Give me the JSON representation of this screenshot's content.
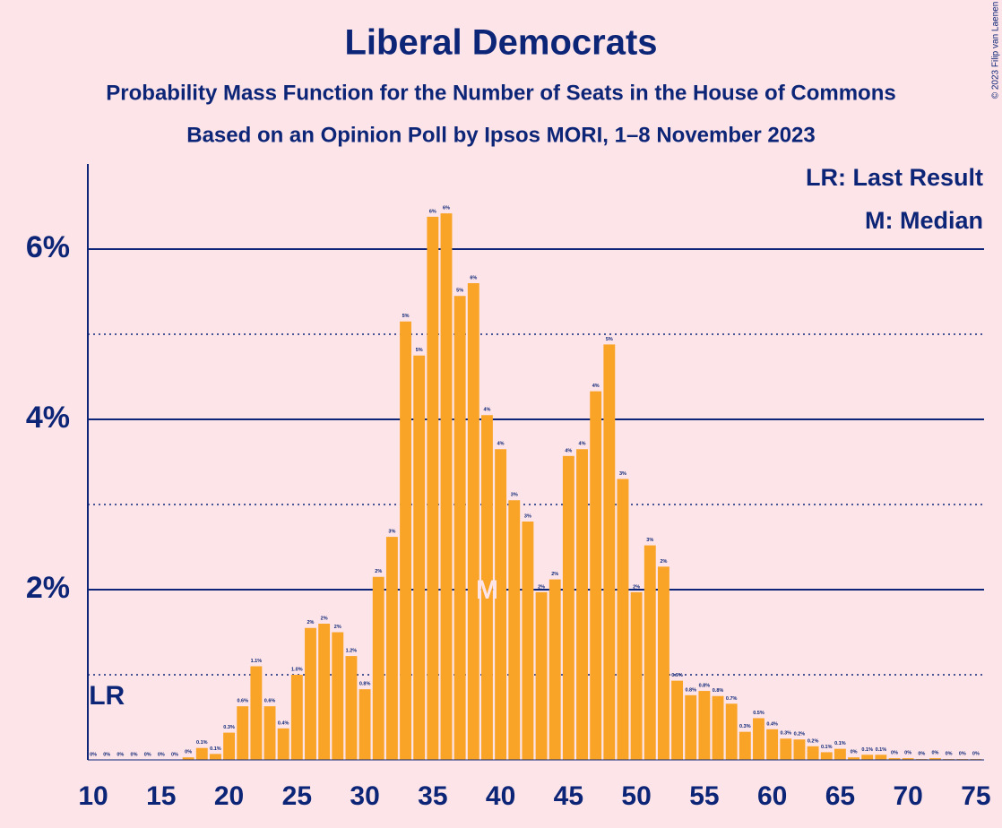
{
  "chart_data": {
    "type": "bar",
    "title": "Liberal Democrats",
    "subtitle": "Probability Mass Function for the Number of Seats in the House of Commons",
    "subtitle2": "Based on an Opinion Poll by Ipsos MORI, 1–8 November 2023",
    "copyright": "© 2023 Filip van Laenen",
    "legend": [
      "LR: Last Result",
      "M: Median"
    ],
    "last_result": {
      "x": 11,
      "label": "LR"
    },
    "median": {
      "x": 39,
      "label": "M"
    },
    "color": "#f9a427",
    "x": [
      10,
      11,
      12,
      13,
      14,
      15,
      16,
      17,
      18,
      19,
      20,
      21,
      22,
      23,
      24,
      25,
      26,
      27,
      28,
      29,
      30,
      31,
      32,
      33,
      34,
      35,
      36,
      37,
      38,
      39,
      40,
      41,
      42,
      43,
      44,
      45,
      46,
      47,
      48,
      49,
      50,
      51,
      52,
      53,
      54,
      55,
      56,
      57,
      58,
      59,
      60,
      61,
      62,
      63,
      64,
      65,
      66,
      67,
      68,
      69,
      70,
      71,
      72,
      73,
      74,
      75
    ],
    "values": [
      0,
      0,
      0,
      0,
      0,
      0,
      0,
      0.03,
      0.14,
      0.07,
      0.32,
      0.63,
      1.1,
      0.63,
      0.37,
      1.0,
      1.55,
      1.6,
      1.5,
      1.22,
      0.83,
      2.15,
      2.62,
      5.15,
      4.75,
      6.38,
      6.42,
      5.45,
      5.6,
      4.05,
      3.65,
      3.05,
      2.8,
      1.97,
      2.12,
      3.57,
      3.65,
      4.33,
      4.88,
      3.3,
      1.97,
      2.52,
      2.27,
      0.93,
      0.76,
      0.81,
      0.75,
      0.66,
      0.33,
      0.49,
      0.36,
      0.25,
      0.24,
      0.16,
      0.09,
      0.13,
      0.03,
      0.06,
      0.06,
      0.02,
      0.02,
      0.01,
      0.02,
      0.01,
      0.01,
      0.01
    ],
    "value_labels": [
      "0%",
      "0%",
      "0%",
      "0%",
      "0%",
      "0%",
      "0%",
      "0%",
      "0.1%",
      "0.1%",
      "0.3%",
      "0.6%",
      "1.1%",
      "0.6%",
      "0.4%",
      "1.0%",
      "2%",
      "2%",
      "2%",
      "1.2%",
      "0.8%",
      "2%",
      "3%",
      "5%",
      "5%",
      "6%",
      "6%",
      "5%",
      "6%",
      "4%",
      "4%",
      "3%",
      "3%",
      "2%",
      "2%",
      "4%",
      "4%",
      "4%",
      "5%",
      "3%",
      "2%",
      "3%",
      "2%",
      "0.9%",
      "0.8%",
      "0.8%",
      "0.8%",
      "0.7%",
      "0.3%",
      "0.5%",
      "0.4%",
      "0.3%",
      "0.2%",
      "0.2%",
      "0.1%",
      "0.1%",
      "0%",
      "0.1%",
      "0.1%",
      "0%",
      "0%",
      "0%",
      "0%",
      "0%",
      "0%",
      "0%"
    ],
    "xlim": [
      9.6,
      75.6
    ],
    "xticks": [
      10,
      15,
      20,
      25,
      30,
      35,
      40,
      45,
      50,
      55,
      60,
      65,
      70,
      75
    ],
    "ylim": [
      0,
      7
    ],
    "yticks": [
      {
        "value": 2,
        "label": "2%"
      },
      {
        "value": 4,
        "label": "4%"
      },
      {
        "value": 6,
        "label": "6%"
      }
    ],
    "minor_yticks": [
      1,
      3,
      5
    ],
    "grid": true
  }
}
